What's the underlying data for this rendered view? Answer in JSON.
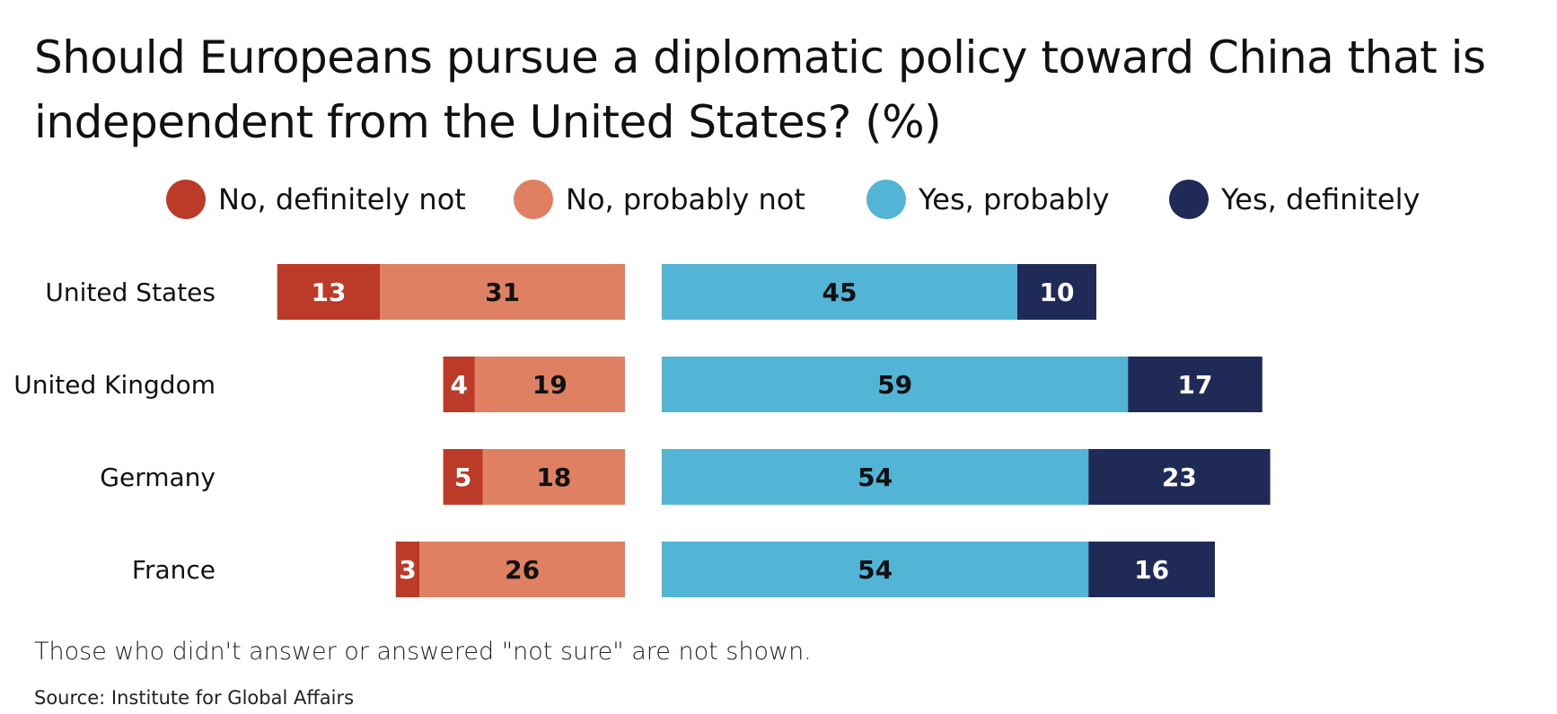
{
  "chart_data": {
    "type": "bar",
    "orientation": "horizontal-diverging-stacked",
    "title": "Should Europeans pursue a diplomatic policy toward China that is independent from the United States? (%)",
    "categories": [
      "United States",
      "United Kingdom",
      "Germany",
      "France"
    ],
    "series": [
      {
        "name": "No, definitely not",
        "color": "#BB3B28",
        "side": "negative",
        "label_color": "#ffffff",
        "values": [
          13,
          4,
          5,
          3
        ]
      },
      {
        "name": "No, probably not",
        "color": "#E08063",
        "side": "negative",
        "label_color": "#111111",
        "values": [
          31,
          19,
          18,
          26
        ]
      },
      {
        "name": "Yes, probably",
        "color": "#53B5D5",
        "side": "positive",
        "label_color": "#111111",
        "values": [
          45,
          59,
          54,
          54
        ]
      },
      {
        "name": "Yes, definitely",
        "color": "#1F2A56",
        "side": "positive",
        "label_color": "#ffffff",
        "values": [
          10,
          17,
          23,
          16
        ]
      }
    ],
    "legend_position": "top",
    "grid": false,
    "note": "Those who didn't answer or answered \"not sure\" are not shown.",
    "source": "Source: Institute for Global Affairs"
  }
}
